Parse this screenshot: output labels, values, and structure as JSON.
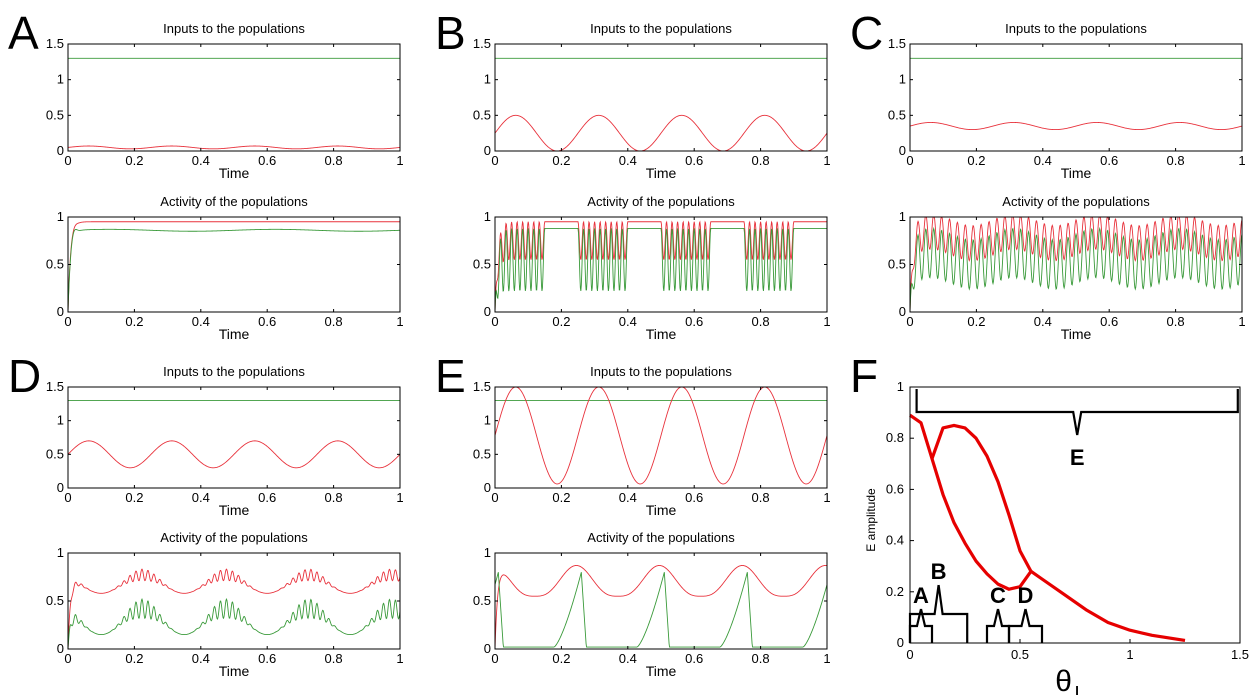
{
  "figure": {
    "panels": [
      {
        "letter": "A",
        "input_title": "Inputs to the populations",
        "activity_title": "Activity of the populations"
      },
      {
        "letter": "B",
        "input_title": "Inputs to the populations",
        "activity_title": "Activity of the populations"
      },
      {
        "letter": "C",
        "input_title": "Inputs to the populations",
        "activity_title": "Activity of the populations"
      },
      {
        "letter": "D",
        "input_title": "Inputs to the populations",
        "activity_title": "Activity of the populations"
      },
      {
        "letter": "E",
        "input_title": "Inputs to the populations",
        "activity_title": "Activity of the populations"
      }
    ],
    "panel_f_letter": "F",
    "colors": {
      "excitatory": "#e8323c",
      "inhibitory": "#3a9a3a",
      "curve": "#e60000"
    }
  },
  "chart_data": [
    {
      "panel": "A",
      "plot": "inputs",
      "type": "line",
      "title": "Inputs to the populations",
      "xlabel": "Time",
      "ylabel": "",
      "xlim": [
        0,
        1
      ],
      "ylim": [
        0,
        1.5
      ],
      "xticks": [
        "0",
        "0.2",
        "0.4",
        "0.6",
        "0.8",
        "1"
      ],
      "yticks": [
        "0",
        "0.5",
        "1",
        "1.5"
      ],
      "series": [
        {
          "color": "#3a9a3a",
          "kind": "constant",
          "value": 1.3
        },
        {
          "color": "#e8323c",
          "kind": "sine",
          "mean": 0.05,
          "amplitude": 0.02,
          "period": 0.25,
          "phase": 0
        }
      ]
    },
    {
      "panel": "A",
      "plot": "activity",
      "type": "line",
      "title": "Activity of the populations",
      "xlabel": "Time",
      "ylabel": "",
      "xlim": [
        0,
        1
      ],
      "ylim": [
        0,
        1
      ],
      "xticks": [
        "0",
        "0.2",
        "0.4",
        "0.6",
        "0.8",
        "1"
      ],
      "yticks": [
        "0",
        "0.5",
        "1"
      ],
      "series": [
        {
          "color": "#e8323c",
          "kind": "activity",
          "base": 0.95,
          "swing": 0.0,
          "osc": 0.0,
          "peak": 0.98
        },
        {
          "color": "#3a9a3a",
          "kind": "activity",
          "base": 0.86,
          "swing": 0.01,
          "osc": 0.0,
          "peak": 0.95
        }
      ]
    },
    {
      "panel": "B",
      "plot": "inputs",
      "type": "line",
      "title": "Inputs to the populations",
      "xlabel": "Time",
      "ylabel": "",
      "xlim": [
        0,
        1
      ],
      "ylim": [
        0,
        1.5
      ],
      "xticks": [
        "0",
        "0.2",
        "0.4",
        "0.6",
        "0.8",
        "1"
      ],
      "yticks": [
        "0",
        "0.5",
        "1",
        "1.5"
      ],
      "series": [
        {
          "color": "#3a9a3a",
          "kind": "constant",
          "value": 1.3
        },
        {
          "color": "#e8323c",
          "kind": "sine",
          "mean": 0.25,
          "amplitude": 0.25,
          "period": 0.25,
          "phase": 0
        }
      ]
    },
    {
      "panel": "B",
      "plot": "activity",
      "type": "line",
      "title": "Activity of the populations",
      "xlabel": "Time",
      "ylabel": "",
      "xlim": [
        0,
        1
      ],
      "ylim": [
        0,
        1
      ],
      "xticks": [
        "0",
        "0.2",
        "0.4",
        "0.6",
        "0.8",
        "1"
      ],
      "yticks": [
        "0",
        "0.5",
        "1"
      ],
      "series": [
        {
          "color": "#e8323c",
          "kind": "burst",
          "high": 0.95,
          "low": 0.55,
          "freq": 60
        },
        {
          "color": "#3a9a3a",
          "kind": "burst",
          "high": 0.88,
          "low": 0.22,
          "freq": 60
        }
      ]
    },
    {
      "panel": "C",
      "plot": "inputs",
      "type": "line",
      "title": "Inputs to the populations",
      "xlabel": "Time",
      "ylabel": "",
      "xlim": [
        0,
        1
      ],
      "ylim": [
        0,
        1.5
      ],
      "xticks": [
        "0",
        "0.2",
        "0.4",
        "0.6",
        "0.8",
        "1"
      ],
      "yticks": [
        "0",
        "0.5",
        "1",
        "1.5"
      ],
      "series": [
        {
          "color": "#3a9a3a",
          "kind": "constant",
          "value": 1.3
        },
        {
          "color": "#e8323c",
          "kind": "sine",
          "mean": 0.35,
          "amplitude": 0.05,
          "period": 0.25,
          "phase": 0
        }
      ]
    },
    {
      "panel": "C",
      "plot": "activity",
      "type": "line",
      "title": "Activity of the populations",
      "xlabel": "Time",
      "ylabel": "",
      "xlim": [
        0,
        1
      ],
      "ylim": [
        0,
        1
      ],
      "xticks": [
        "0",
        "0.2",
        "0.4",
        "0.6",
        "0.8",
        "1"
      ],
      "yticks": [
        "0",
        "0.5",
        "1"
      ],
      "series": [
        {
          "color": "#e8323c",
          "kind": "fastosc",
          "high": 0.97,
          "low": 0.6,
          "freq": 42
        },
        {
          "color": "#3a9a3a",
          "kind": "fastosc",
          "high": 0.82,
          "low": 0.3,
          "freq": 42
        }
      ]
    },
    {
      "panel": "D",
      "plot": "inputs",
      "type": "line",
      "title": "Inputs to the populations",
      "xlabel": "Time",
      "ylabel": "",
      "xlim": [
        0,
        1
      ],
      "ylim": [
        0,
        1.5
      ],
      "xticks": [
        "0",
        "0.2",
        "0.4",
        "0.6",
        "0.8",
        "1"
      ],
      "yticks": [
        "0",
        "0.5",
        "1",
        "1.5"
      ],
      "series": [
        {
          "color": "#3a9a3a",
          "kind": "constant",
          "value": 1.3
        },
        {
          "color": "#e8323c",
          "kind": "sine",
          "mean": 0.5,
          "amplitude": 0.2,
          "period": 0.25,
          "phase": 0
        }
      ]
    },
    {
      "panel": "D",
      "plot": "activity",
      "type": "line",
      "title": "Activity of the populations",
      "xlabel": "Time",
      "ylabel": "",
      "xlim": [
        0,
        1
      ],
      "ylim": [
        0,
        1
      ],
      "xticks": [
        "0",
        "0.2",
        "0.4",
        "0.6",
        "0.8",
        "1"
      ],
      "yticks": [
        "0",
        "0.5",
        "1"
      ],
      "series": [
        {
          "color": "#e8323c",
          "kind": "wave",
          "base": 0.58,
          "amp": 0.32,
          "osc": 0.06
        },
        {
          "color": "#3a9a3a",
          "kind": "wave",
          "base": 0.15,
          "amp": 0.45,
          "osc": 0.1
        }
      ]
    },
    {
      "panel": "E",
      "plot": "inputs",
      "type": "line",
      "title": "Inputs to the populations",
      "xlabel": "Time",
      "ylabel": "",
      "xlim": [
        0,
        1
      ],
      "ylim": [
        0,
        1.5
      ],
      "xticks": [
        "0",
        "0.2",
        "0.4",
        "0.6",
        "0.8",
        "1"
      ],
      "yticks": [
        "0",
        "0.5",
        "1",
        "1.5"
      ],
      "series": [
        {
          "color": "#3a9a3a",
          "kind": "constant",
          "value": 1.3
        },
        {
          "color": "#e8323c",
          "kind": "sine",
          "mean": 0.78,
          "amplitude": 0.72,
          "period": 0.25,
          "phase": 0
        }
      ]
    },
    {
      "panel": "E",
      "plot": "activity",
      "type": "line",
      "title": "Activity of the populations",
      "xlabel": "Time",
      "ylabel": "",
      "xlim": [
        0,
        1
      ],
      "ylim": [
        0,
        1
      ],
      "xticks": [
        "0",
        "0.2",
        "0.4",
        "0.6",
        "0.8",
        "1"
      ],
      "yticks": [
        "0",
        "0.5",
        "1"
      ],
      "series": [
        {
          "color": "#e8323c",
          "kind": "bigwave",
          "base": 0.55,
          "amp": 0.32
        },
        {
          "color": "#3a9a3a",
          "kind": "pulse",
          "base": 0.02,
          "amp": 0.78
        }
      ]
    },
    {
      "panel": "F",
      "plot": "bifurcation",
      "type": "line",
      "title": "",
      "xlabel": "θ",
      "xlabel_sub": "I",
      "ylabel": "E amplitude",
      "xlim": [
        0,
        1.5
      ],
      "ylim": [
        0,
        1
      ],
      "xticks": [
        "0",
        "0.5",
        "1",
        "1.5"
      ],
      "yticks": [
        "0",
        "0.2",
        "0.4",
        "0.6",
        "0.8",
        "1"
      ],
      "series": [
        {
          "name": "",
          "color": "#e60000",
          "x": [
            0,
            0.05,
            0.1,
            0.15,
            0.2,
            0.25,
            0.3,
            0.35,
            0.4,
            0.45,
            0.5,
            0.55,
            0.6,
            0.7,
            0.8,
            0.9,
            1.0,
            1.1,
            1.25
          ],
          "y": [
            0.89,
            0.86,
            0.72,
            0.58,
            0.47,
            0.39,
            0.32,
            0.27,
            0.23,
            0.21,
            0.22,
            0.28,
            0.25,
            0.19,
            0.13,
            0.08,
            0.05,
            0.03,
            0.01
          ]
        },
        {
          "name": "",
          "color": "#e60000",
          "x": [
            0.1,
            0.15,
            0.2,
            0.25,
            0.3,
            0.35,
            0.4,
            0.45,
            0.5,
            0.55
          ],
          "y": [
            0.72,
            0.84,
            0.85,
            0.84,
            0.8,
            0.73,
            0.63,
            0.5,
            0.36,
            0.28
          ]
        }
      ],
      "annotations": [
        {
          "label": "E",
          "x_from": 0.03,
          "x_to": 1.49,
          "y": 0.9
        },
        {
          "label": "A",
          "x_from": 0.0,
          "x_to": 0.1,
          "y": 0.05
        },
        {
          "label": "B",
          "x_from": 0.0,
          "x_to": 0.26,
          "y": 0.12
        },
        {
          "label": "C",
          "x_from": 0.35,
          "x_to": 0.45,
          "y": 0.05
        },
        {
          "label": "D",
          "x_from": 0.45,
          "x_to": 0.6,
          "y": 0.05
        }
      ]
    }
  ]
}
